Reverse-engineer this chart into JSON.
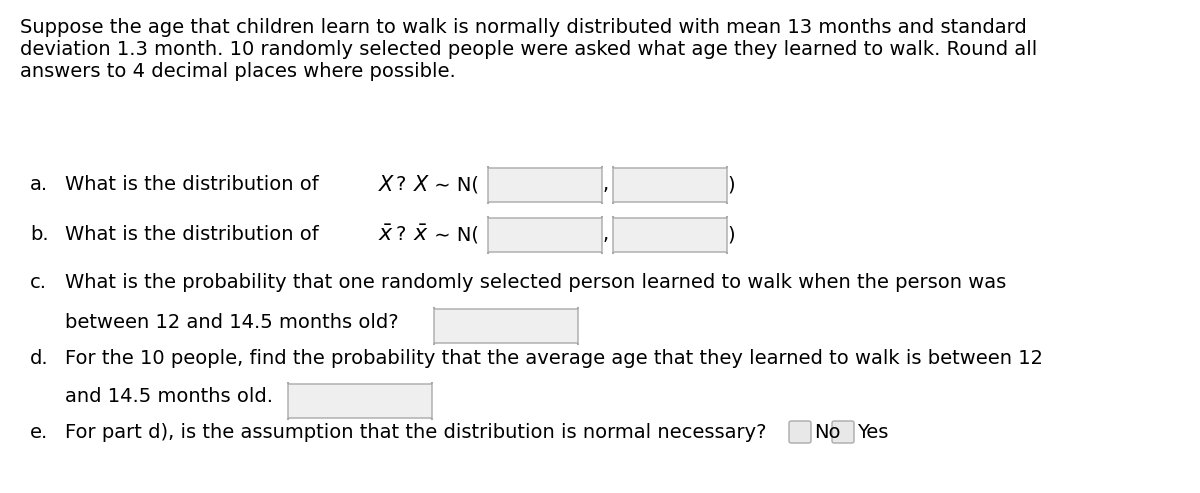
{
  "background_color": "#ffffff",
  "intro_text": "Suppose the age that children learn to walk is normally distributed with mean 13 months and standard\ndeviation 1.3 month. 10 randomly selected people were asked what age they learned to walk. Round all\nanswers to 4 decimal places where possible.",
  "font_size": 14,
  "radio_label1": "No",
  "radio_label2": "Yes"
}
